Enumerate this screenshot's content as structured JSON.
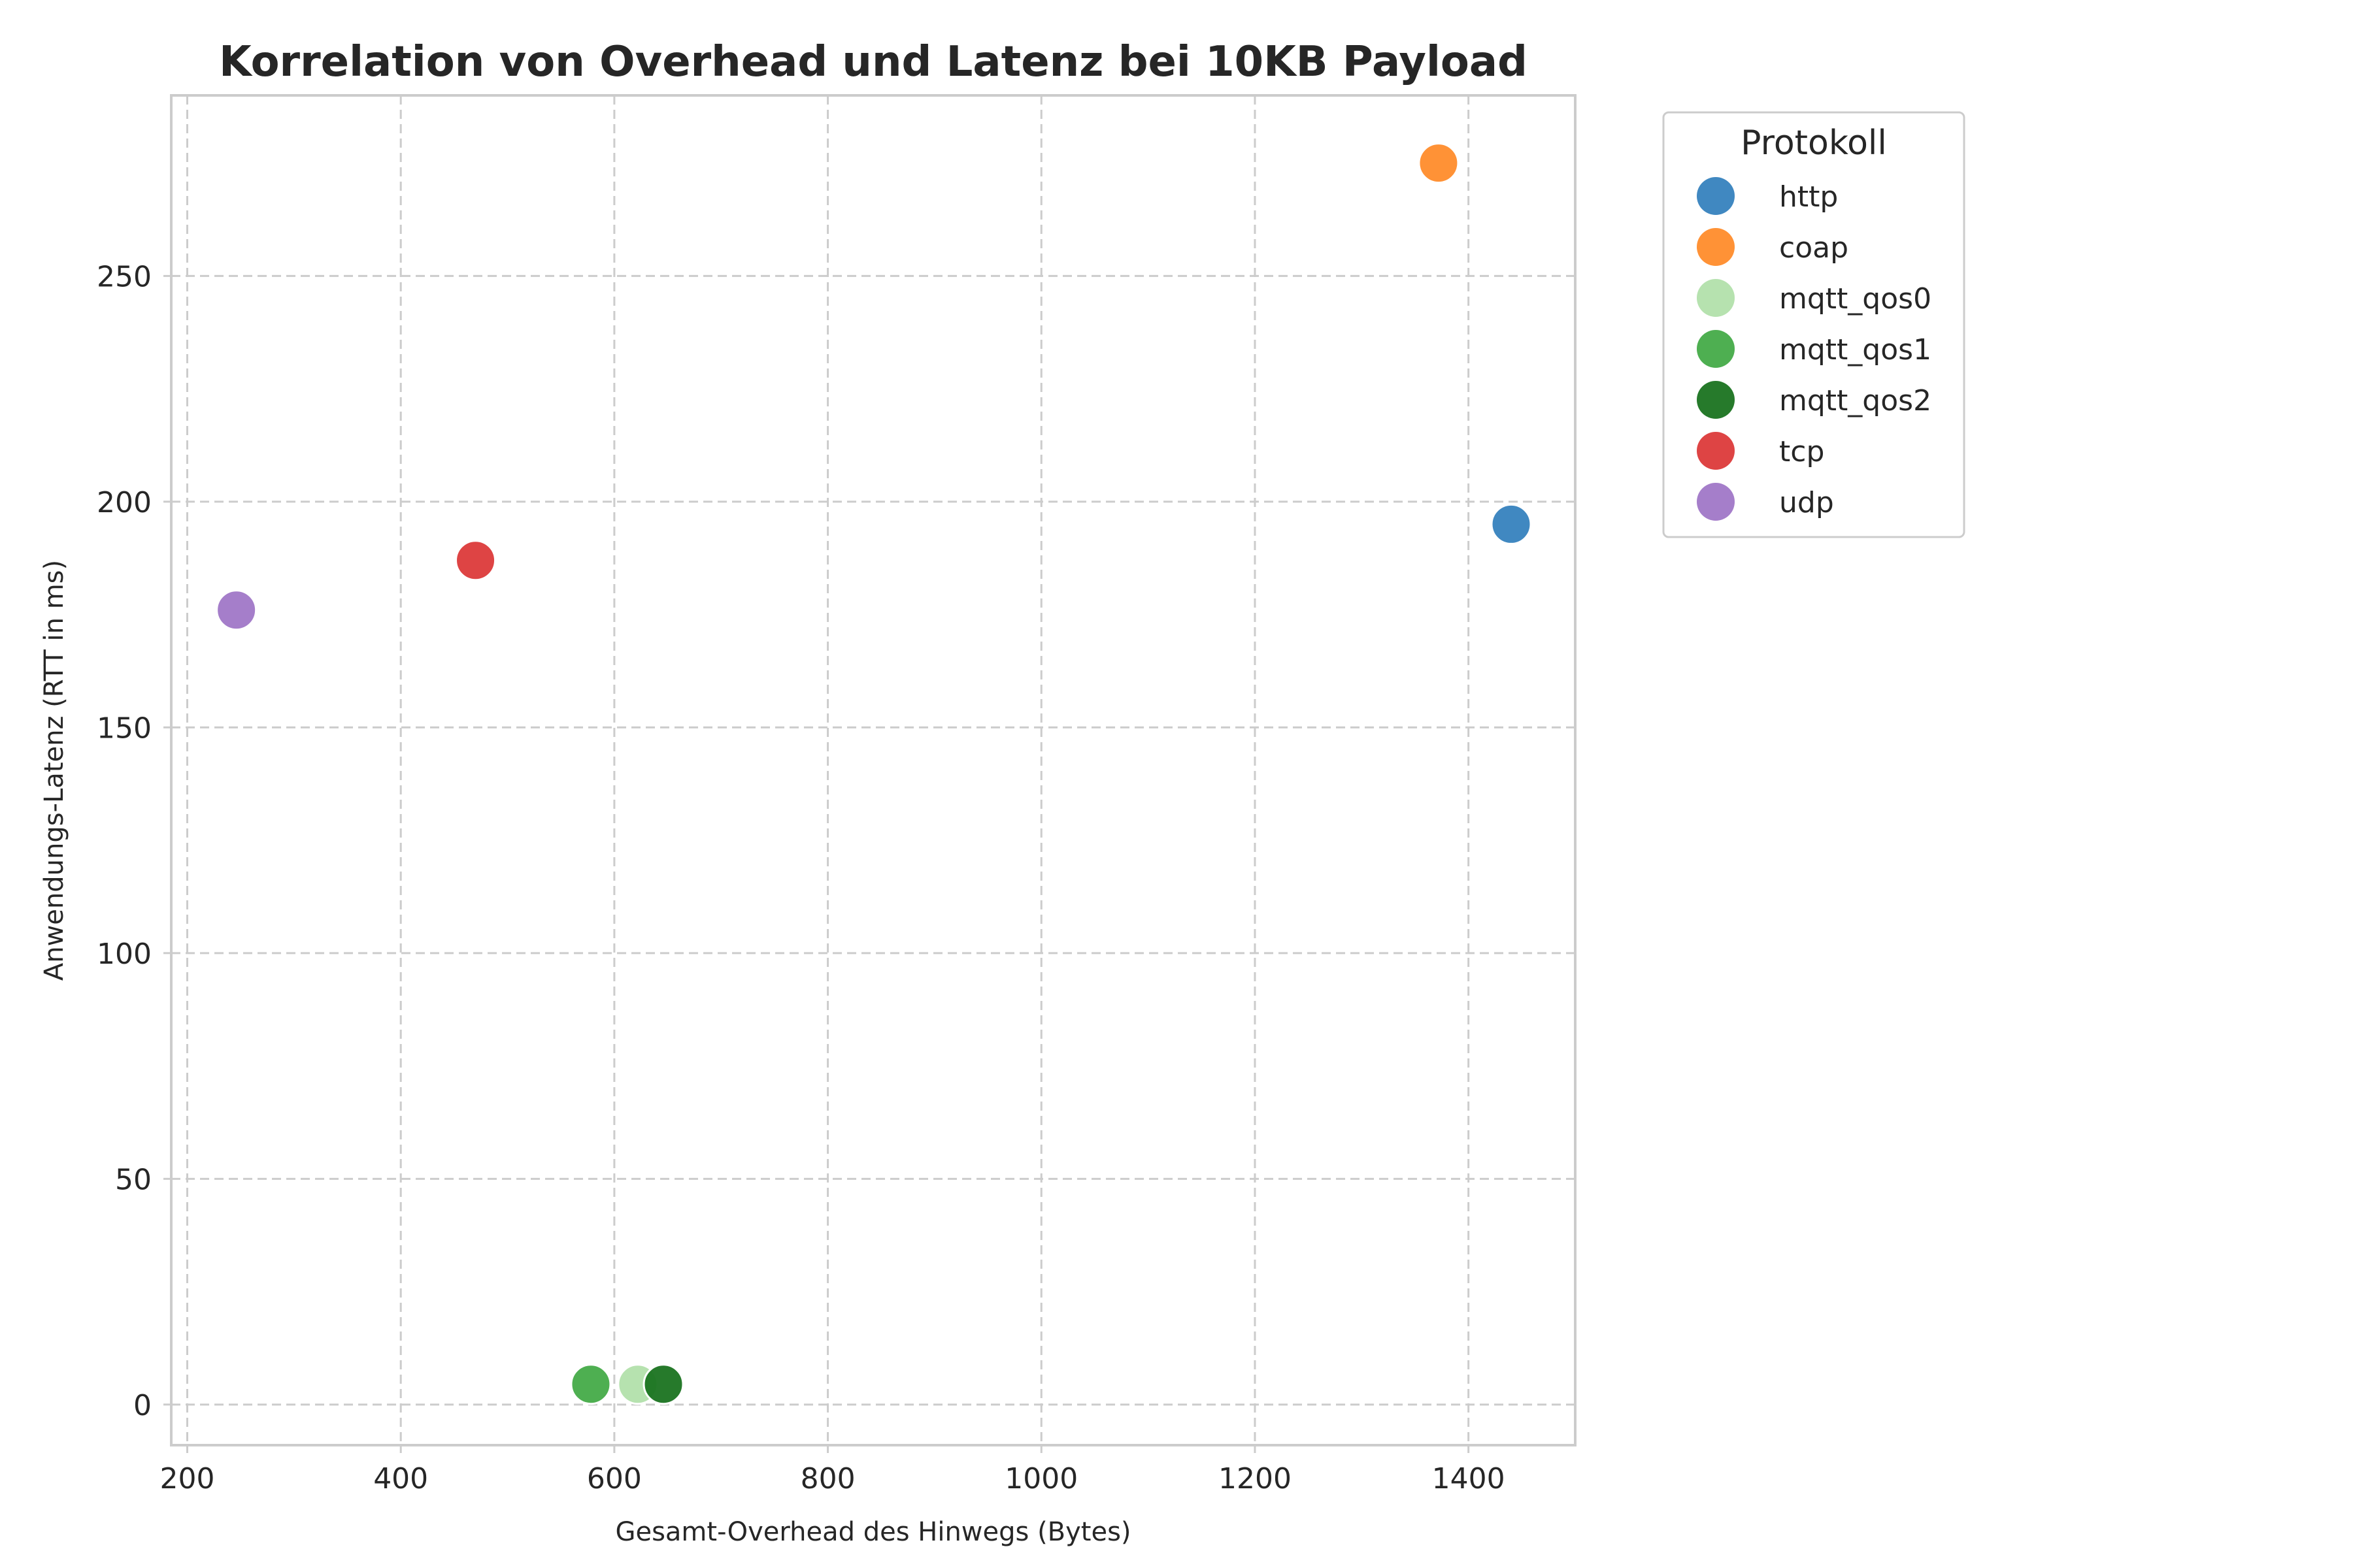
{
  "chart_data": {
    "type": "scatter",
    "title": "Korrelation von Overhead und Latenz bei 10KB Payload",
    "xlabel": "Gesamt-Overhead des Hinwegs (Bytes)",
    "ylabel": "Anwendungs-Latenz (RTT in ms)",
    "xlim": [
      185,
      1500
    ],
    "ylim": [
      -9,
      290
    ],
    "xticks": [
      200,
      400,
      600,
      800,
      1000,
      1200,
      1400
    ],
    "yticks": [
      0,
      50,
      100,
      150,
      200,
      250
    ],
    "grid": true,
    "legend": {
      "title": "Protokoll",
      "placement": "outside-top-right"
    },
    "series": [
      {
        "name": "http",
        "color": "#3682be",
        "points": [
          [
            1440,
            195
          ]
        ]
      },
      {
        "name": "coap",
        "color": "#ff8c2b",
        "points": [
          [
            1372,
            275
          ]
        ]
      },
      {
        "name": "mqtt_qos0",
        "color": "#b2e0ab",
        "points": [
          [
            622,
            4.5
          ]
        ]
      },
      {
        "name": "mqtt_qos1",
        "color": "#44ab48",
        "points": [
          [
            578,
            4.5
          ]
        ]
      },
      {
        "name": "mqtt_qos2",
        "color": "#1a7320",
        "points": [
          [
            646,
            4.5
          ]
        ]
      },
      {
        "name": "tcp",
        "color": "#dc3a3a",
        "points": [
          [
            470,
            187
          ]
        ]
      },
      {
        "name": "udp",
        "color": "#a077c7",
        "points": [
          [
            246,
            176
          ]
        ]
      }
    ]
  }
}
